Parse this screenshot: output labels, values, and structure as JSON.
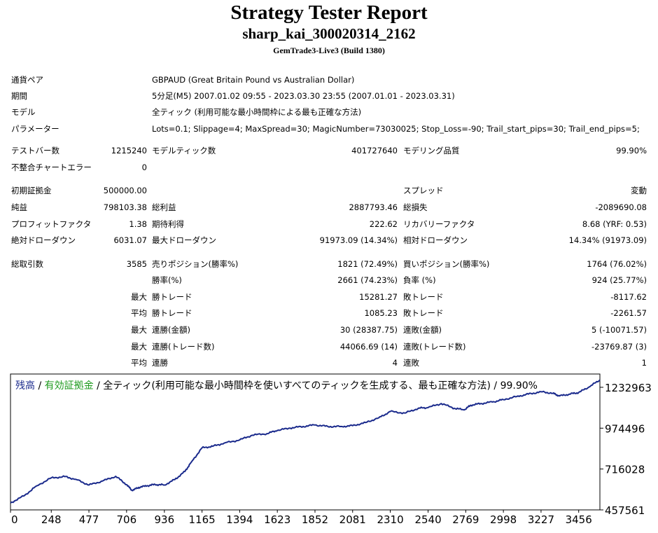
{
  "header": {
    "title": "Strategy Tester Report",
    "subtitle": "sharp_kai_300020314_2162",
    "server": "GemTrade3-Live3 (Build 1380)"
  },
  "info": [
    {
      "label": "通貨ペア",
      "value": "GBPAUD (Great Britain Pound vs Australian Dollar)"
    },
    {
      "label": "期間",
      "value": "5分足(M5) 2007.01.02 09:55 - 2023.03.30 23:55 (2007.01.01 - 2023.03.31)"
    },
    {
      "label": "モデル",
      "value": "全ティック (利用可能な最小時間枠による最も正確な方法)"
    },
    {
      "label": "パラメーター",
      "value": "Lots=0.1; Slippage=4; MaxSpread=30; MagicNumber=73030025; Stop_Loss=-90; Trail_start_pips=30; Trail_end_pips=5;"
    }
  ],
  "stats": {
    "bars_label": "テストバー数",
    "bars_value": "1215240",
    "ticks_label": "モデルティック数",
    "ticks_value": "401727640",
    "quality_label": "モデリング品質",
    "quality_value": "99.90%",
    "mismatch_label": "不整合チャートエラー",
    "mismatch_value": "0",
    "deposit_label": "初期証拠金",
    "deposit_value": "500000.00",
    "spread_label": "スプレッド",
    "spread_value": "変動",
    "net_label": "純益",
    "net_value": "798103.38",
    "gross_profit_label": "総利益",
    "gross_profit_value": "2887793.46",
    "gross_loss_label": "総損失",
    "gross_loss_value": "-2089690.08",
    "pf_label": "プロフィットファクタ",
    "pf_value": "1.38",
    "expected_label": "期待利得",
    "expected_value": "222.62",
    "recovery_label": "リカバリーファクタ",
    "recovery_value": "8.68 (YRF: 0.53)",
    "abs_dd_label": "絶対ドローダウン",
    "abs_dd_value": "6031.07",
    "max_dd_label": "最大ドローダウン",
    "max_dd_value": "91973.09 (14.34%)",
    "rel_dd_label": "相対ドローダウン",
    "rel_dd_value": "14.34% (91973.09)",
    "trades_label": "総取引数",
    "trades_value": "3585",
    "short_label": "売りポジション(勝率%)",
    "short_value": "1821 (72.49%)",
    "long_label": "買いポジション(勝率%)",
    "long_value": "1764 (76.02%)",
    "win_rate_label": "勝率(%)",
    "win_rate_value": "2661 (74.23%)",
    "loss_rate_label": "負率 (%)",
    "loss_rate_value": "924 (25.77%)",
    "max_prefix": "最大",
    "avg_prefix": "平均",
    "largest_win_label": "勝トレード",
    "largest_win_value": "15281.27",
    "largest_loss_label": "敗トレード",
    "largest_loss_value": "-8117.62",
    "avg_win_label": "勝トレード",
    "avg_win_value": "1085.23",
    "avg_loss_label": "敗トレード",
    "avg_loss_value": "-2261.57",
    "cons_wins_amt_label": "連勝(金額)",
    "cons_wins_amt_value": "30 (28387.75)",
    "cons_losses_amt_label": "連敗(金額)",
    "cons_losses_amt_value": "5 (-10071.57)",
    "cons_wins_cnt_label": "連勝(トレード数)",
    "cons_wins_cnt_value": "44066.69 (14)",
    "cons_losses_cnt_label": "連敗(トレード数)",
    "cons_losses_cnt_value": "-23769.87 (3)",
    "avg_cons_wins_label": "連勝",
    "avg_cons_wins_value": "4",
    "avg_cons_losses_label": "連敗",
    "avg_cons_losses_value": "1"
  },
  "chart_data": {
    "type": "line",
    "legend_balance": "残高",
    "legend_sep1": " / ",
    "legend_equity": "有効証拠金",
    "legend_sep2": " / ",
    "legend_rest": "全ティック(利用可能な最小時間枠を使いすべてのティックを生成する、最も正確な方法) / 99.90%",
    "balance_color": "#1a2a8c",
    "equity_color": "#1f9a1f",
    "grid": false,
    "legend_position": "top-left",
    "x_ticks": [
      0,
      248,
      477,
      706,
      936,
      1165,
      1394,
      1623,
      1852,
      2081,
      2310,
      2540,
      2769,
      2998,
      3227,
      3456
    ],
    "y_ticks": [
      457561,
      716028,
      974496,
      1232963
    ],
    "xlim": [
      0,
      3585
    ],
    "ylim": [
      457561,
      1317000
    ],
    "series": [
      {
        "name": "残高",
        "x": [
          0,
          80,
          160,
          248,
          330,
          400,
          477,
          560,
          640,
          706,
          740,
          780,
          830,
          880,
          936,
          1000,
          1060,
          1100,
          1165,
          1230,
          1300,
          1394,
          1470,
          1560,
          1623,
          1700,
          1780,
          1852,
          1930,
          2010,
          2081,
          2160,
          2240,
          2310,
          2400,
          2480,
          2540,
          2620,
          2700,
          2760,
          2800,
          2860,
          2930,
          2998,
          3080,
          3150,
          3227,
          3300,
          3340,
          3400,
          3456,
          3520,
          3585
        ],
        "y": [
          502000,
          545000,
          610000,
          660000,
          668000,
          650000,
          615000,
          640000,
          670000,
          617000,
          580000,
          600000,
          610000,
          618000,
          615000,
          650000,
          700000,
          760000,
          850000,
          860000,
          880000,
          900000,
          930000,
          940000,
          960000,
          975000,
          985000,
          995000,
          985000,
          985000,
          990000,
          1010000,
          1040000,
          1080000,
          1070000,
          1100000,
          1105000,
          1130000,
          1100000,
          1090000,
          1120000,
          1130000,
          1140000,
          1155000,
          1175000,
          1190000,
          1205000,
          1195000,
          1178000,
          1190000,
          1200000,
          1235000,
          1280000
        ]
      }
    ]
  }
}
